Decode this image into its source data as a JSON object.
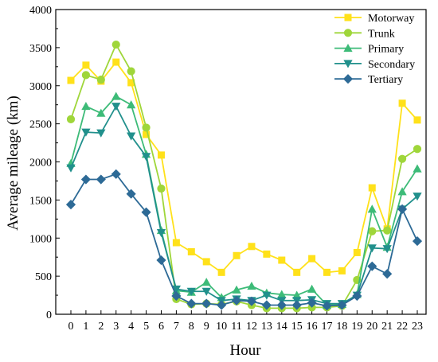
{
  "chart_data": {
    "type": "line",
    "xlabel": "Hour",
    "ylabel": "Average mileage (km)",
    "x": [
      0,
      1,
      2,
      3,
      4,
      5,
      6,
      7,
      8,
      9,
      10,
      11,
      12,
      13,
      14,
      15,
      16,
      17,
      18,
      19,
      20,
      21,
      22,
      23
    ],
    "xticks": [
      "0",
      "1",
      "2",
      "3",
      "4",
      "5",
      "6",
      "7",
      "8",
      "9",
      "10",
      "11",
      "12",
      "13",
      "14",
      "15",
      "16",
      "17",
      "18",
      "19",
      "20",
      "21",
      "22",
      "23"
    ],
    "ylim": [
      0,
      4000
    ],
    "yticks": [
      "0",
      "500",
      "1000",
      "1500",
      "2000",
      "2500",
      "3000",
      "3500",
      "4000"
    ],
    "yticks_values": [
      0,
      500,
      1000,
      1500,
      2000,
      2500,
      3000,
      3500,
      4000
    ],
    "grid": false,
    "legend_position": "top-right",
    "series": [
      {
        "name": "Motorway",
        "marker": "square",
        "color": "#ffe11a",
        "values": [
          3070,
          3270,
          3060,
          3310,
          3040,
          2360,
          2090,
          940,
          820,
          690,
          550,
          770,
          890,
          790,
          710,
          550,
          730,
          550,
          570,
          810,
          1660,
          1120,
          2770,
          2550
        ]
      },
      {
        "name": "Trunk",
        "marker": "circle",
        "color": "#9fd63a",
        "values": [
          2560,
          3140,
          3080,
          3540,
          3190,
          2450,
          1650,
          200,
          130,
          140,
          130,
          170,
          120,
          80,
          80,
          80,
          90,
          90,
          110,
          450,
          1090,
          1100,
          2040,
          2170
        ]
      },
      {
        "name": "Primary",
        "marker": "triangle-up",
        "color": "#3dbb78",
        "values": [
          1980,
          2730,
          2640,
          2860,
          2750,
          2100,
          1100,
          310,
          290,
          420,
          220,
          320,
          370,
          280,
          260,
          250,
          330,
          120,
          130,
          260,
          1380,
          880,
          1610,
          1910
        ]
      },
      {
        "name": "Secondary",
        "marker": "triangle-down",
        "color": "#21908c",
        "values": [
          1920,
          2390,
          2380,
          2730,
          2340,
          2070,
          1070,
          330,
          300,
          300,
          180,
          200,
          180,
          250,
          180,
          180,
          190,
          140,
          140,
          250,
          870,
          860,
          1380,
          1550
        ]
      },
      {
        "name": "Tertiary",
        "marker": "diamond",
        "color": "#2d6a96",
        "values": [
          1440,
          1770,
          1770,
          1840,
          1580,
          1340,
          710,
          240,
          140,
          140,
          120,
          180,
          170,
          120,
          120,
          120,
          150,
          110,
          120,
          240,
          630,
          530,
          1380,
          960
        ]
      }
    ]
  }
}
